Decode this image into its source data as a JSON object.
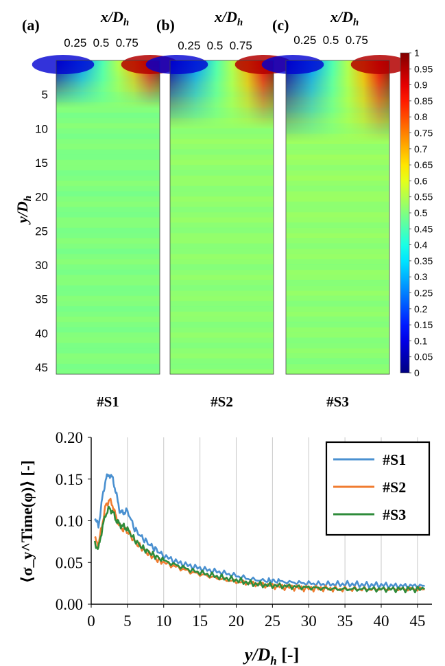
{
  "chart_data": [
    {
      "type": "heatmap",
      "colorbar": {
        "range": [
          0,
          1
        ],
        "tick_labels": [
          "1",
          "0.95",
          "0.9",
          "0.85",
          "0.8",
          "0.75",
          "0.7",
          "0.65",
          "0.6",
          "0.55",
          "0.5",
          "0.45",
          "0.4",
          "0.35",
          "0.3",
          "0.25",
          "0.2",
          "0.15",
          "0.1",
          "0.05",
          "0"
        ],
        "colormap": "jet"
      },
      "panels": [
        {
          "label": "(a)",
          "xlabel": "x/D",
          "xlabel_sub": "h",
          "x_ticks": [
            "0.25",
            "0.5",
            "0.75"
          ],
          "caption": "#S1",
          "far_field_value": 0.5,
          "near_field_extent": 7
        },
        {
          "label": "(b)",
          "xlabel": "x/D",
          "xlabel_sub": "h",
          "x_ticks": [
            "0.25",
            "0.5",
            "0.75"
          ],
          "caption": "#S2",
          "far_field_value": 0.52,
          "near_field_extent": 10
        },
        {
          "label": "(c)",
          "xlabel": "x/D",
          "xlabel_sub": "h",
          "x_ticks": [
            "0.25",
            "0.5",
            "0.75"
          ],
          "caption": "#S3",
          "far_field_value": 0.53,
          "near_field_extent": 12
        }
      ],
      "ylabel": "y/D",
      "ylabel_sub": "h",
      "y_ticks": [
        "5",
        "10",
        "15",
        "20",
        "25",
        "30",
        "35",
        "40",
        "45"
      ],
      "ylim": [
        0,
        46
      ]
    },
    {
      "type": "line",
      "xlabel": "y/D",
      "xlabel_sub": "h",
      "xlabel_suffix": " [-]",
      "ylabel": "⟨σ_y^Time(φ)⟩ [-]",
      "xlim": [
        0,
        47
      ],
      "ylim": [
        0,
        0.2
      ],
      "x_ticks": [
        "0",
        "5",
        "10",
        "15",
        "20",
        "25",
        "30",
        "35",
        "40",
        "45"
      ],
      "y_ticks": [
        "0.00",
        "0.05",
        "0.10",
        "0.15",
        "0.20"
      ],
      "grid": "vertical",
      "legend_position": "top-right",
      "series": [
        {
          "name": "#S1",
          "color": "#4a90d0",
          "x": [
            0.5,
            1,
            1.5,
            2,
            2.5,
            3,
            3.5,
            4,
            4.5,
            5,
            6,
            7,
            8,
            9,
            10,
            12,
            14,
            16,
            18,
            20,
            22,
            24,
            25,
            26,
            28,
            30,
            32,
            34,
            36,
            38,
            40,
            42,
            44,
            46
          ],
          "y": [
            0.104,
            0.093,
            0.125,
            0.15,
            0.156,
            0.15,
            0.13,
            0.11,
            0.11,
            0.112,
            0.09,
            0.08,
            0.072,
            0.065,
            0.058,
            0.05,
            0.045,
            0.041,
            0.038,
            0.034,
            0.03,
            0.028,
            0.028,
            0.027,
            0.026,
            0.025,
            0.024,
            0.024,
            0.024,
            0.023,
            0.023,
            0.022,
            0.022,
            0.022
          ]
        },
        {
          "name": "#S2",
          "color": "#f07c30",
          "x": [
            0.5,
            1,
            1.5,
            2,
            2.5,
            3,
            3.5,
            4,
            4.5,
            5,
            6,
            7,
            8,
            9,
            10,
            12,
            14,
            16,
            18,
            20,
            22,
            24,
            26,
            28,
            30,
            32,
            34,
            36,
            38,
            40,
            42,
            44,
            46
          ],
          "y": [
            0.078,
            0.071,
            0.095,
            0.118,
            0.125,
            0.118,
            0.102,
            0.092,
            0.09,
            0.088,
            0.075,
            0.067,
            0.06,
            0.054,
            0.05,
            0.044,
            0.038,
            0.034,
            0.03,
            0.027,
            0.025,
            0.023,
            0.021,
            0.02,
            0.019,
            0.019,
            0.018,
            0.018,
            0.018,
            0.018,
            0.018,
            0.018,
            0.018
          ]
        },
        {
          "name": "#S3",
          "color": "#2e8b3a",
          "x": [
            0.5,
            1,
            1.5,
            2,
            2.5,
            3,
            3.5,
            4,
            4.5,
            5,
            6,
            7,
            8,
            9,
            10,
            12,
            14,
            16,
            18,
            20,
            22,
            24,
            26,
            28,
            30,
            32,
            34,
            36,
            38,
            40,
            42,
            44,
            46
          ],
          "y": [
            0.073,
            0.066,
            0.09,
            0.108,
            0.115,
            0.11,
            0.1,
            0.095,
            0.093,
            0.09,
            0.077,
            0.068,
            0.062,
            0.057,
            0.052,
            0.046,
            0.04,
            0.036,
            0.032,
            0.029,
            0.025,
            0.023,
            0.022,
            0.021,
            0.02,
            0.019,
            0.018,
            0.018,
            0.018,
            0.018,
            0.018,
            0.018,
            0.018
          ]
        }
      ]
    }
  ]
}
